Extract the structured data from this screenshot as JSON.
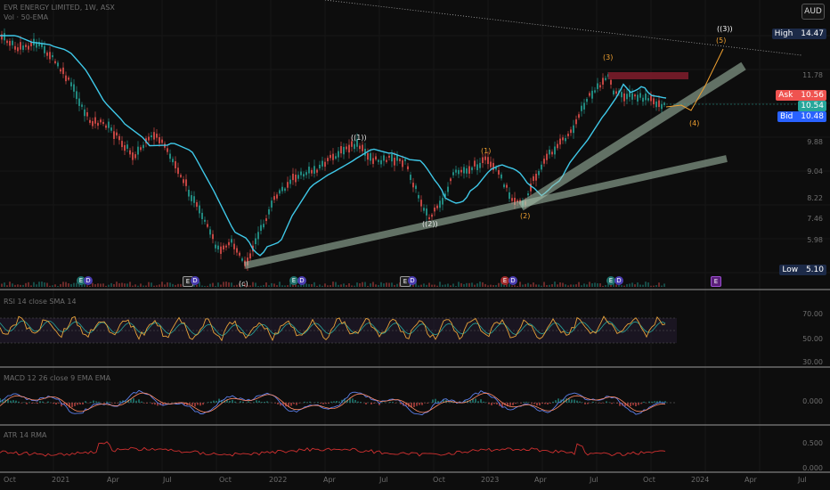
{
  "header": {
    "symbol_line": "EVR ENERGY LIMITED, 1W, ASX",
    "sub_line": "Vol · 50-EMA",
    "currency_button": "AUD"
  },
  "price_axis": {
    "high_label": "High",
    "high_value": "14.47",
    "ask_label": "Ask",
    "ask_value": "10.56",
    "last_value": "10.54",
    "bid_label": "Bid",
    "bid_value": "10.48",
    "low_label": "Low",
    "low_value": "5.10",
    "ticks": [
      "11.78",
      "10.90",
      "9.88",
      "9.04",
      "8.22",
      "7.46",
      "6.70",
      "5.98"
    ]
  },
  "waves": {
    "w_c": "(c)",
    "w_1": "((1))",
    "w_2": "((2))",
    "w_i": "(1)",
    "w_ii": "(2)",
    "w_iii": "(3)",
    "w_iv": "(4)",
    "w_v": "(5)",
    "w_3": "((3))"
  },
  "events": {
    "e1": "E",
    "d1": "D",
    "e2": "E",
    "d2": "D",
    "e3": "E",
    "d3": "D",
    "e4": "E",
    "d4": "D",
    "e5": "E",
    "d5": "D",
    "e6": "E",
    "d6": "D",
    "e7": "E"
  },
  "panes": {
    "rsi_legend": "RSI 14 close SMA 14",
    "rsi_hi": "70.00",
    "rsi_mid": "50.00",
    "rsi_lo": "30.00",
    "macd_legend": "MACD 12 26 close 9 EMA EMA",
    "macd_zero": "0.000",
    "atr_legend": "ATR 14 RMA",
    "atr_hi": "0.500",
    "atr_lo": "0.000"
  },
  "time_axis": [
    "Oct",
    "2021",
    "Apr",
    "Jul",
    "Oct",
    "2022",
    "Apr",
    "Jul",
    "Oct",
    "2023",
    "Apr",
    "Jul",
    "Oct",
    "2024",
    "Apr",
    "Jul"
  ],
  "colors": {
    "up": "#26a69a",
    "down": "#ef5350",
    "ema": "#3fc8e8",
    "trend": "#a9c4ae",
    "rsi": "#e8a33a",
    "macd": "#5b7ee8",
    "signal": "#ff8a65",
    "atr": "#d03030",
    "bid": "#2962ff",
    "ask": "#ef5350",
    "last": "#26a69a",
    "resist": "#7a1c2a"
  }
}
